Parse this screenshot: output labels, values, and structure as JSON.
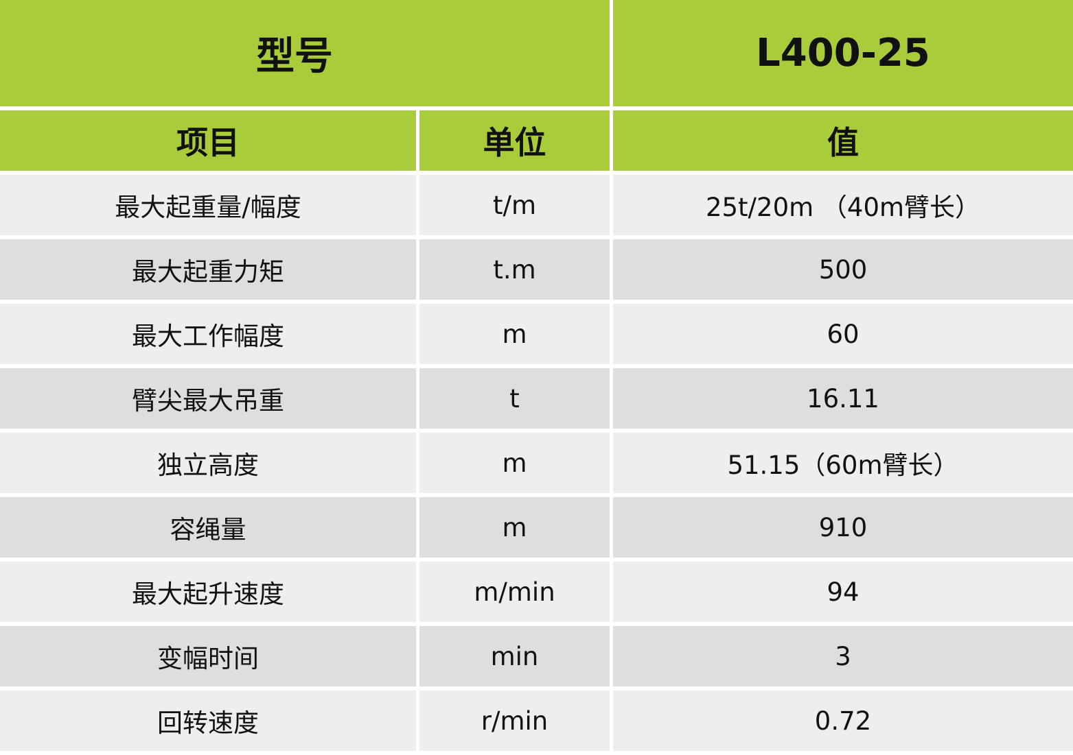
{
  "title_row": {
    "label": "型号",
    "model": "L400-25"
  },
  "columns": [
    "项目",
    "单位",
    "值"
  ],
  "rows": [
    [
      "最大起重量/幅度",
      "t/m",
      "25t/20m （40m臂长）"
    ],
    [
      "最大起重力矩",
      "t.m",
      "500"
    ],
    [
      "最大工作幅度",
      "m",
      "60"
    ],
    [
      "臂尖最大吊重",
      "t",
      "16.11"
    ],
    [
      "独立高度",
      "m",
      "51.15（60m臂长）"
    ],
    [
      "容绳量",
      "m",
      "910"
    ],
    [
      "最大起升速度",
      "m/min",
      "94"
    ],
    [
      "变幅时间",
      "min",
      "3"
    ],
    [
      "回转速度",
      "r/min",
      "0.72"
    ]
  ],
  "colors": {
    "header": "#a9cd3a",
    "row_light": "#eeeeee",
    "row_dark": "#dedede"
  }
}
